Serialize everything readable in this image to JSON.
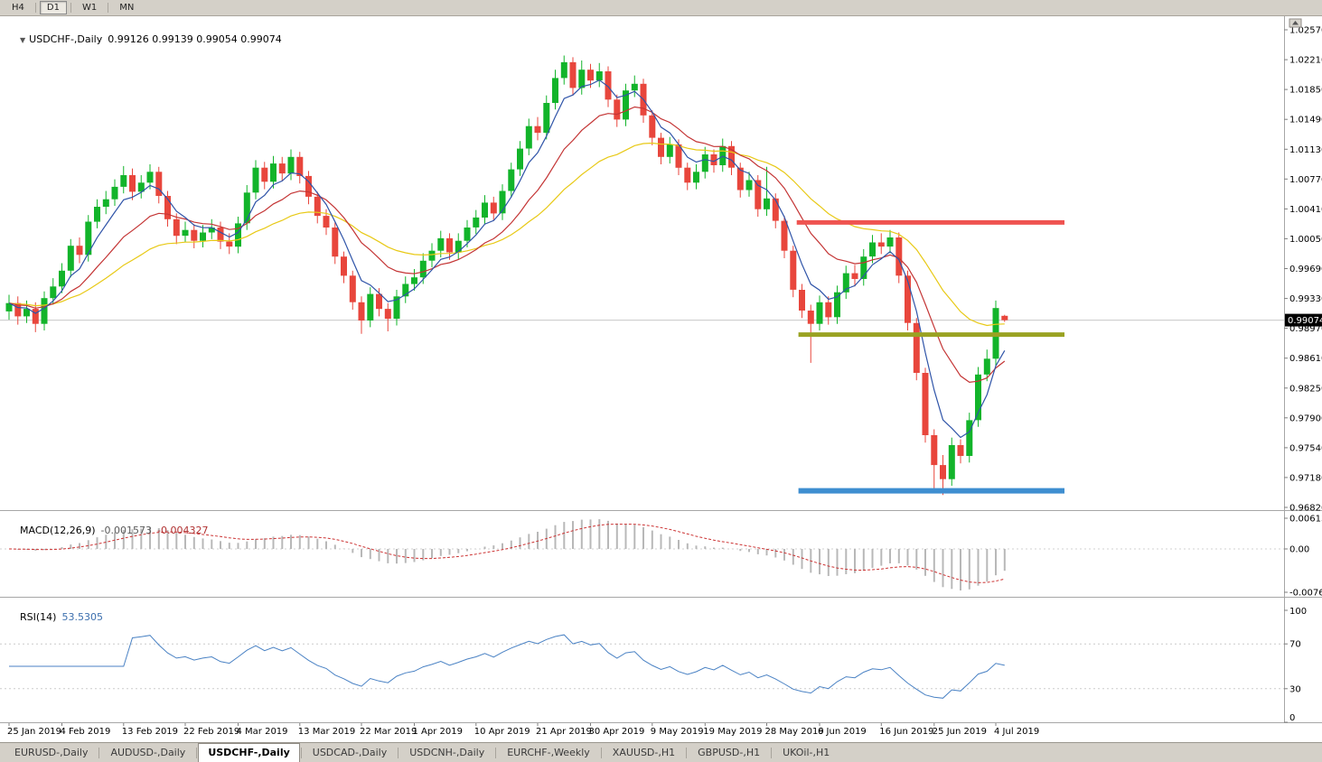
{
  "toolbar": {
    "periods": [
      "H4",
      "D1",
      "W1",
      "MN"
    ],
    "active_period": "D1"
  },
  "icons": {
    "title_marker": "▼"
  },
  "chart": {
    "title": {
      "symbol": "USDCHF-,Daily",
      "ohlc": "0.99126 0.99139 0.99054 0.99074"
    }
  },
  "macd_panel": {
    "label": "MACD(12,26,9)",
    "value1": "-0.001573",
    "value2": "-0.004327",
    "axis": [
      "0.00613",
      "0.00",
      "-0.00761"
    ]
  },
  "rsi_panel": {
    "label": "RSI(14)",
    "value": "53.5305",
    "axis": [
      "100",
      "70",
      "30",
      "0"
    ]
  },
  "tabs": {
    "items": [
      "EURUSD-,Daily",
      "AUDUSD-,Daily",
      "USDCHF-,Daily",
      "USDCAD-,Daily",
      "USDCNH-,Daily",
      "EURCHF-,Weekly",
      "XAUUSD-,H1",
      "GBPUSD-,H1",
      "UKOil-,H1"
    ],
    "active_index": 2
  },
  "chart_data": {
    "type": "candlestick",
    "symbol": "USDCHF",
    "timeframe": "Daily",
    "last_bar": {
      "open": 0.99126,
      "high": 0.99139,
      "low": 0.99054,
      "close": 0.99074
    },
    "current_price": "0.99074",
    "price_axis": [
      "1.02570",
      "1.02210",
      "1.01850",
      "1.01490",
      "1.01130",
      "1.00770",
      "1.00410",
      "1.00050",
      "0.99690",
      "0.99330",
      "0.98970",
      "0.98610",
      "0.98250",
      "0.97900",
      "0.97540",
      "0.97180",
      "0.96820"
    ],
    "x_labels": [
      {
        "text": "25 Jan 2019",
        "index": 0
      },
      {
        "text": "4 Feb 2019",
        "index": 6
      },
      {
        "text": "13 Feb 2019",
        "index": 13
      },
      {
        "text": "22 Feb 2019",
        "index": 20
      },
      {
        "text": "4 Mar 2019",
        "index": 26
      },
      {
        "text": "13 Mar 2019",
        "index": 33
      },
      {
        "text": "22 Mar 2019",
        "index": 40
      },
      {
        "text": "1 Apr 2019",
        "index": 46
      },
      {
        "text": "10 Apr 2019",
        "index": 53
      },
      {
        "text": "21 Apr 2019",
        "index": 60
      },
      {
        "text": "30 Apr 2019",
        "index": 66
      },
      {
        "text": "9 May 2019",
        "index": 73
      },
      {
        "text": "19 May 2019",
        "index": 79
      },
      {
        "text": "28 May 2019",
        "index": 86
      },
      {
        "text": "6 Jun 2019",
        "index": 92
      },
      {
        "text": "16 Jun 2019",
        "index": 99
      },
      {
        "text": "25 Jun 2019",
        "index": 105
      },
      {
        "text": "4 Jul 2019",
        "index": 112
      }
    ],
    "candles": [
      [
        0.9918,
        0.9938,
        0.9908,
        0.9928
      ],
      [
        0.9928,
        0.9936,
        0.9902,
        0.9912
      ],
      [
        0.9912,
        0.9931,
        0.9904,
        0.9921
      ],
      [
        0.9921,
        0.9929,
        0.9893,
        0.9903
      ],
      [
        0.9903,
        0.9942,
        0.9895,
        0.9934
      ],
      [
        0.9934,
        0.9958,
        0.9926,
        0.9948
      ],
      [
        0.9948,
        0.9976,
        0.994,
        0.9967
      ],
      [
        0.9967,
        1.0005,
        0.9959,
        0.9997
      ],
      [
        0.9997,
        1.0007,
        0.9976,
        0.9986
      ],
      [
        0.9986,
        1.0034,
        0.9978,
        1.0026
      ],
      [
        1.0026,
        1.0053,
        1.0018,
        1.0044
      ],
      [
        1.0044,
        1.0063,
        1.0035,
        1.0053
      ],
      [
        1.0053,
        1.0077,
        1.0045,
        1.0068
      ],
      [
        1.0068,
        1.0093,
        1.006,
        1.0082
      ],
      [
        1.0082,
        1.009,
        1.0052,
        1.0062
      ],
      [
        1.0062,
        1.0082,
        1.0054,
        1.0073
      ],
      [
        1.0073,
        1.0095,
        1.0065,
        1.0086
      ],
      [
        1.0086,
        1.0092,
        1.0048,
        1.0057
      ],
      [
        1.0057,
        1.0063,
        1.002,
        1.0029
      ],
      [
        1.0029,
        1.0036,
        0.9999,
        1.0009
      ],
      [
        1.0009,
        1.0026,
        1.0001,
        1.0016
      ],
      [
        1.0016,
        1.0023,
        0.9994,
        1.0003
      ],
      [
        1.0003,
        1.0022,
        0.9995,
        1.0013
      ],
      [
        1.0013,
        1.0029,
        1.0005,
        1.0019
      ],
      [
        1.0019,
        1.0026,
        0.9993,
        1.0002
      ],
      [
        1.0002,
        1.0012,
        0.9987,
        0.9996
      ],
      [
        0.9996,
        1.0032,
        0.9988,
        1.0024
      ],
      [
        1.0024,
        1.007,
        1.0016,
        1.0061
      ],
      [
        1.0061,
        1.01,
        1.0053,
        1.0091
      ],
      [
        1.0091,
        1.0098,
        1.0065,
        1.0074
      ],
      [
        1.0074,
        1.0105,
        1.0066,
        1.0096
      ],
      [
        1.0096,
        1.0104,
        1.0075,
        1.0084
      ],
      [
        1.0084,
        1.0113,
        1.0076,
        1.0104
      ],
      [
        1.0104,
        1.011,
        1.0072,
        1.0081
      ],
      [
        1.0081,
        1.0087,
        1.0047,
        1.0056
      ],
      [
        1.0056,
        1.0062,
        1.0024,
        1.0033
      ],
      [
        1.0033,
        1.0041,
        1.001,
        1.0019
      ],
      [
        1.0019,
        1.0025,
        0.9975,
        0.9984
      ],
      [
        0.9984,
        0.999,
        0.9952,
        0.9961
      ],
      [
        0.9961,
        0.9967,
        0.992,
        0.9929
      ],
      [
        0.9929,
        0.9936,
        0.9891,
        0.9907
      ],
      [
        0.9907,
        0.9947,
        0.9899,
        0.9939
      ],
      [
        0.9939,
        0.9946,
        0.9912,
        0.9921
      ],
      [
        0.9921,
        0.9928,
        0.9894,
        0.9909
      ],
      [
        0.9909,
        0.9944,
        0.9901,
        0.9936
      ],
      [
        0.9936,
        0.996,
        0.9928,
        0.9951
      ],
      [
        0.9951,
        0.9969,
        0.9943,
        0.9959
      ],
      [
        0.9959,
        0.9988,
        0.9951,
        0.9979
      ],
      [
        0.9979,
        1.0,
        0.9971,
        0.9991
      ],
      [
        0.9991,
        1.0015,
        0.9983,
        1.0006
      ],
      [
        1.0006,
        1.0012,
        0.998,
        0.9989
      ],
      [
        0.9989,
        1.0012,
        0.9981,
        1.0003
      ],
      [
        1.0003,
        1.0028,
        0.9995,
        1.0019
      ],
      [
        1.0019,
        1.004,
        1.0011,
        1.0031
      ],
      [
        1.0031,
        1.0058,
        1.0023,
        1.0049
      ],
      [
        1.0049,
        1.0056,
        1.0027,
        1.0036
      ],
      [
        1.0036,
        1.0071,
        1.0028,
        1.0063
      ],
      [
        1.0063,
        1.0097,
        1.0055,
        1.0089
      ],
      [
        1.0089,
        1.0123,
        1.0081,
        1.0114
      ],
      [
        1.0114,
        1.015,
        1.0106,
        1.0141
      ],
      [
        1.0141,
        1.0152,
        1.0124,
        1.0133
      ],
      [
        1.0133,
        1.0178,
        1.0125,
        1.0169
      ],
      [
        1.0169,
        1.0209,
        1.0161,
        1.0199
      ],
      [
        1.0199,
        1.0226,
        1.0191,
        1.0218
      ],
      [
        1.0218,
        1.0224,
        1.0178,
        1.0187
      ],
      [
        1.0187,
        1.022,
        1.0179,
        1.0209
      ],
      [
        1.0209,
        1.0216,
        1.0187,
        1.0196
      ],
      [
        1.0196,
        1.0217,
        1.0188,
        1.0207
      ],
      [
        1.0207,
        1.0213,
        1.0164,
        1.0173
      ],
      [
        1.0173,
        1.0179,
        1.014,
        1.0149
      ],
      [
        1.0149,
        1.0192,
        1.0141,
        1.0184
      ],
      [
        1.0184,
        1.0202,
        1.0176,
        1.0192
      ],
      [
        1.0192,
        1.0198,
        1.0145,
        1.0154
      ],
      [
        1.0154,
        1.016,
        1.0118,
        1.0127
      ],
      [
        1.0127,
        1.0133,
        1.0095,
        1.0104
      ],
      [
        1.0104,
        1.0128,
        1.0096,
        1.0119
      ],
      [
        1.0119,
        1.0125,
        1.0082,
        1.0091
      ],
      [
        1.0091,
        1.0097,
        1.0064,
        1.0073
      ],
      [
        1.0073,
        1.0095,
        1.0065,
        1.0086
      ],
      [
        1.0086,
        1.0116,
        1.0078,
        1.0107
      ],
      [
        1.0107,
        1.0113,
        1.0085,
        1.0094
      ],
      [
        1.0094,
        1.0126,
        1.0086,
        1.0117
      ],
      [
        1.0117,
        1.0123,
        1.0082,
        1.0091
      ],
      [
        1.0091,
        1.0097,
        1.0055,
        1.0064
      ],
      [
        1.0064,
        1.0086,
        1.0056,
        1.0076
      ],
      [
        1.0076,
        1.0082,
        1.0032,
        1.0041
      ],
      [
        1.0041,
        1.0092,
        1.0033,
        1.0054
      ],
      [
        1.0054,
        1.006,
        1.0018,
        1.0027
      ],
      [
        1.0027,
        1.0033,
        0.9982,
        0.9991
      ],
      [
        0.9991,
        0.9997,
        0.9935,
        0.9944
      ],
      [
        0.9944,
        0.9951,
        0.991,
        0.9919
      ],
      [
        0.9919,
        0.9926,
        0.9856,
        0.9903
      ],
      [
        0.9903,
        0.9937,
        0.9895,
        0.9929
      ],
      [
        0.9929,
        0.9936,
        0.9902,
        0.9911
      ],
      [
        0.9911,
        0.9949,
        0.9903,
        0.9941
      ],
      [
        0.9941,
        0.9973,
        0.9933,
        0.9964
      ],
      [
        0.9964,
        0.9974,
        0.9948,
        0.9957
      ],
      [
        0.9957,
        0.9993,
        0.9949,
        0.9984
      ],
      [
        0.9984,
        1.001,
        0.9976,
        1.0001
      ],
      [
        1.0001,
        1.0012,
        0.9987,
        0.9996
      ],
      [
        0.9996,
        1.0016,
        0.9988,
        1.0007
      ],
      [
        1.0007,
        1.0013,
        0.9952,
        0.9961
      ],
      [
        0.9961,
        0.9967,
        0.9895,
        0.9904
      ],
      [
        0.9904,
        0.991,
        0.9835,
        0.9844
      ],
      [
        0.9844,
        0.985,
        0.976,
        0.9769
      ],
      [
        0.9769,
        0.9776,
        0.9701,
        0.9733
      ],
      [
        0.9733,
        0.9745,
        0.9697,
        0.9716
      ],
      [
        0.9716,
        0.9766,
        0.9708,
        0.9757
      ],
      [
        0.9757,
        0.9764,
        0.9735,
        0.9744
      ],
      [
        0.9744,
        0.9796,
        0.9736,
        0.9787
      ],
      [
        0.9787,
        0.9851,
        0.9779,
        0.9842
      ],
      [
        0.9842,
        0.9872,
        0.9834,
        0.9861
      ],
      [
        0.9861,
        0.9931,
        0.9853,
        0.9922
      ],
      [
        0.99126,
        0.99139,
        0.99054,
        0.99074
      ]
    ],
    "overlays": {
      "ma_fast": {
        "period": 5,
        "color": "#2f54a8"
      },
      "ma_mid": {
        "period": 13,
        "color": "#c43535"
      },
      "ma_slow": {
        "period": 28,
        "color": "#e8c916"
      }
    },
    "hlines": [
      {
        "name": "resistance-line",
        "price": 1.0025,
        "color": "#ef5350",
        "width": 5,
        "i1": 89.4,
        "i2": 119.8
      },
      {
        "name": "mid-support-line",
        "price": 0.989,
        "color": "#9aa222",
        "width": 5,
        "i1": 89.6,
        "i2": 119.8
      },
      {
        "name": "lower-support-line",
        "price": 0.9702,
        "color": "#3e8ed0",
        "width": 6,
        "i1": 89.6,
        "i2": 119.8
      }
    ],
    "colors": {
      "up": "#12b42a",
      "down": "#e8463c",
      "price_line": "#c8c8c8",
      "macd_hist": "#b8b8b8",
      "macd_signal": "#cc3333",
      "rsi": "#4a82c4"
    },
    "indicators": {
      "macd": {
        "fast": 12,
        "slow": 26,
        "signal": 9,
        "values": [
          -0.001573,
          -0.004327
        ]
      },
      "rsi": {
        "period": 14,
        "value": 53.5305
      }
    }
  }
}
